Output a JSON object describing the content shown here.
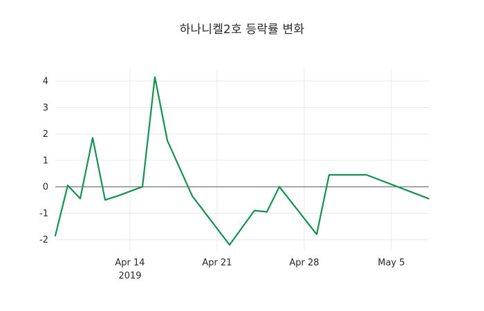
{
  "chart_data": {
    "type": "line",
    "title": "하나니켈2호 등락률 변화",
    "xlabel": "",
    "ylabel": "",
    "grid": true,
    "legend": false,
    "x_domain": [
      0,
      30
    ],
    "y_domain": [
      -2.4,
      4.45
    ],
    "y_ticks": [
      -2,
      -1,
      0,
      1,
      2,
      3,
      4
    ],
    "x_ticks": [
      {
        "pos": 6,
        "label": "Apr 14",
        "sublabel": "2019"
      },
      {
        "pos": 13,
        "label": "Apr 21"
      },
      {
        "pos": 20,
        "label": "Apr 28"
      },
      {
        "pos": 27,
        "label": "May 5"
      }
    ],
    "colors": {
      "line": "#11904e",
      "grid": "#e8e8e8",
      "zero_line": "#555555",
      "text": "#262626",
      "background": "#ffffff"
    },
    "series": [
      {
        "name": "등락률",
        "points": [
          {
            "date": "2019-04-08",
            "d": 0,
            "v": -1.85
          },
          {
            "date": "2019-04-09",
            "d": 1,
            "v": 0.05
          },
          {
            "date": "2019-04-10",
            "d": 2,
            "v": -0.45
          },
          {
            "date": "2019-04-11",
            "d": 3,
            "v": 1.85
          },
          {
            "date": "2019-04-12",
            "d": 4,
            "v": -0.5
          },
          {
            "date": "2019-04-13",
            "d": 5,
            "v": -0.35
          },
          {
            "date": "2019-04-15",
            "d": 7,
            "v": 0.0
          },
          {
            "date": "2019-04-16",
            "d": 8,
            "v": 4.15
          },
          {
            "date": "2019-04-17",
            "d": 9,
            "v": 1.75
          },
          {
            "date": "2019-04-19",
            "d": 11,
            "v": -0.35
          },
          {
            "date": "2019-04-22",
            "d": 14,
            "v": -2.2
          },
          {
            "date": "2019-04-24",
            "d": 16,
            "v": -0.9
          },
          {
            "date": "2019-04-25",
            "d": 17,
            "v": -0.95
          },
          {
            "date": "2019-04-26",
            "d": 18,
            "v": 0.0
          },
          {
            "date": "2019-04-29",
            "d": 21,
            "v": -1.8
          },
          {
            "date": "2019-04-30",
            "d": 22,
            "v": 0.45
          },
          {
            "date": "2019-05-03",
            "d": 25,
            "v": 0.45
          },
          {
            "date": "2019-05-08",
            "d": 30,
            "v": -0.45
          }
        ]
      }
    ]
  }
}
